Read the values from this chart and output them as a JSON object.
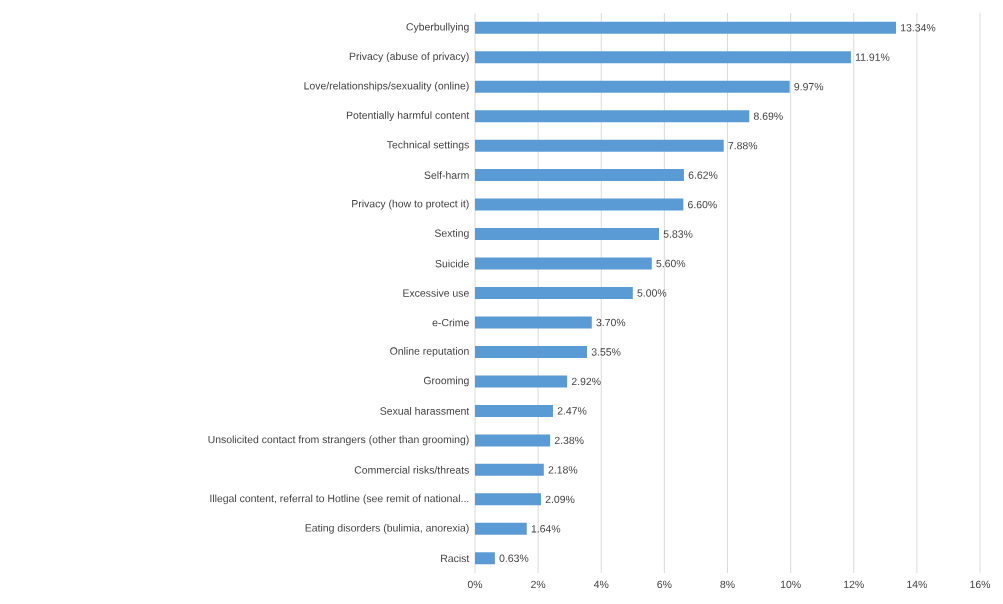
{
  "chart_data": {
    "type": "bar",
    "orientation": "horizontal",
    "categories": [
      "Cyberbullying",
      "Privacy (abuse of privacy)",
      "Love/relationships/sexuality (online)",
      "Potentially harmful content",
      "Technical settings",
      "Self-harm",
      "Privacy (how to protect it)",
      "Sexting",
      "Suicide",
      "Excessive use",
      "e-Crime",
      "Online reputation",
      "Grooming",
      "Sexual harassment",
      "Unsolicited contact from strangers (other than grooming)",
      "Commercial risks/threats",
      "Illegal content, referral to Hotline (see remit of national...",
      "Eating disorders (bulimia, anorexia)",
      "Racist"
    ],
    "values": [
      13.34,
      11.91,
      9.97,
      8.69,
      7.88,
      6.62,
      6.6,
      5.83,
      5.6,
      5.0,
      3.7,
      3.55,
      2.92,
      2.47,
      2.38,
      2.18,
      2.09,
      1.64,
      0.63
    ],
    "value_labels": [
      "13.34%",
      "11.91%",
      "9.97%",
      "8.69%",
      "7.88%",
      "6.62%",
      "6.60%",
      "5.83%",
      "5.60%",
      "5.00%",
      "3.70%",
      "3.55%",
      "2.92%",
      "2.47%",
      "2.38%",
      "2.18%",
      "2.09%",
      "1.64%",
      "0.63%"
    ],
    "color": "#5b9bd5",
    "xlim": [
      0,
      16
    ],
    "xticks": [
      {
        "value": 0,
        "label": "0%"
      },
      {
        "value": 2,
        "label": "2%"
      },
      {
        "value": 4,
        "label": "4%"
      },
      {
        "value": 6,
        "label": "6%"
      },
      {
        "value": 8,
        "label": "8%"
      },
      {
        "value": 10,
        "label": "10%"
      },
      {
        "value": 12,
        "label": "12%"
      },
      {
        "value": 14,
        "label": "14%"
      },
      {
        "value": 16,
        "label": "16%"
      }
    ],
    "grid": "x"
  }
}
